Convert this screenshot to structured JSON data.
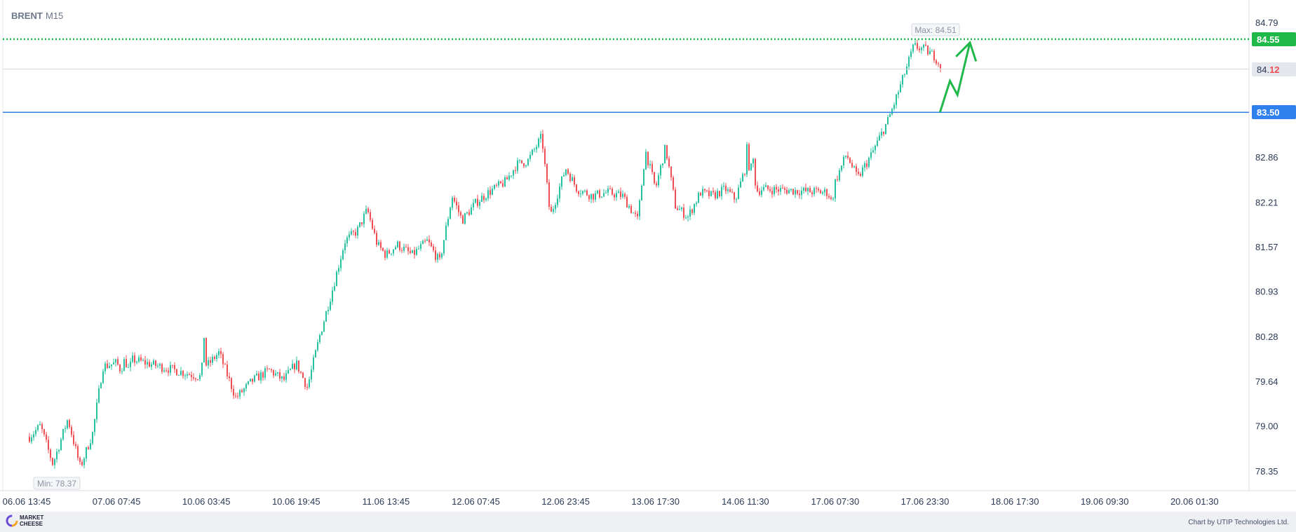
{
  "header": {
    "symbol": "BRENT",
    "timeframe": "M15"
  },
  "footer": {
    "brand_line1": "MARKET",
    "brand_line2": "CHEESE",
    "credit": "Chart by UTIP Technologies Ltd."
  },
  "colors": {
    "up": "#26c1a0",
    "down": "#ef4e55",
    "target": "#1fb84a",
    "support": "#2f80ed",
    "current_bg": "#e3e6ed",
    "current_text": "#2b3a55",
    "current_red": "#ef4e55"
  },
  "chart_data": {
    "type": "candlestick",
    "title": "BRENT",
    "timeframe": "M15",
    "x_ticks": [
      "06.06 13:45",
      "07.06 07:45",
      "10.06 03:45",
      "10.06 19:45",
      "11.06 13:45",
      "12.06 07:45",
      "12.06 23:45",
      "13.06 17:30",
      "14.06 11:30",
      "17.06 07:30",
      "17.06 23:30",
      "18.06 17:30",
      "19.06 09:30",
      "20.06 01:30"
    ],
    "y_ticks": [
      84.79,
      84.14,
      83.5,
      82.86,
      82.21,
      81.57,
      80.93,
      80.28,
      79.64,
      79.0,
      78.35
    ],
    "y_tick_labels": [
      "84.79",
      "",
      "",
      "82.86",
      "82.21",
      "81.57",
      "80.93",
      "80.28",
      "79.64",
      "79.00",
      "78.35"
    ],
    "ylim": [
      78.13,
      84.93
    ],
    "max_label": "Max: 84.51",
    "min_label": "Min: 78.37",
    "levels": [
      {
        "name": "target",
        "value": 84.55,
        "label": "84.55",
        "style": "dotted"
      },
      {
        "name": "current",
        "value": 84.12,
        "label_main": "84.",
        "label_tail": "12",
        "style": "solid-thin"
      },
      {
        "name": "support",
        "value": 83.5,
        "label": "83.50",
        "style": "solid"
      }
    ],
    "path_points": [
      [
        "06.06 13:45",
        78.8
      ],
      [
        "06.06 16:30",
        79.0
      ],
      [
        "06.06 19:00",
        78.45
      ],
      [
        "06.06 22:00",
        79.1
      ],
      [
        "07.06 00:30",
        78.4
      ],
      [
        "07.06 03:00",
        78.9
      ],
      [
        "07.06 05:00",
        79.85
      ],
      [
        "07.06 07:45",
        79.9
      ],
      [
        "07.06 11:00",
        79.8
      ],
      [
        "07.06 14:00",
        79.95
      ],
      [
        "07.06 17:00",
        79.8
      ],
      [
        "07.06 20:00",
        79.95
      ],
      [
        "10.06 00:00",
        79.7
      ],
      [
        "10.06 02:00",
        80.3
      ],
      [
        "10.06 03:45",
        79.85
      ],
      [
        "10.06 06:00",
        80.05
      ],
      [
        "10.06 09:00",
        79.4
      ],
      [
        "10.06 12:00",
        79.65
      ],
      [
        "10.06 15:00",
        79.8
      ],
      [
        "10.06 17:30",
        79.65
      ],
      [
        "10.06 19:45",
        79.9
      ],
      [
        "10.06 22:00",
        79.55
      ],
      [
        "11.06 00:30",
        80.3
      ],
      [
        "11.06 03:00",
        80.95
      ],
      [
        "11.06 05:30",
        81.65
      ],
      [
        "11.06 08:00",
        81.8
      ],
      [
        "11.06 10:00",
        82.1
      ],
      [
        "11.06 12:00",
        81.6
      ],
      [
        "11.06 13:45",
        81.45
      ],
      [
        "11.06 16:00",
        81.6
      ],
      [
        "11.06 19:00",
        81.45
      ],
      [
        "11.06 22:00",
        81.65
      ],
      [
        "12.06 00:30",
        81.35
      ],
      [
        "12.06 03:00",
        82.3
      ],
      [
        "12.06 05:00",
        81.95
      ],
      [
        "12.06 07:45",
        82.2
      ],
      [
        "12.06 10:00",
        82.35
      ],
      [
        "12.06 13:00",
        82.5
      ],
      [
        "12.06 15:00",
        82.75
      ],
      [
        "12.06 17:00",
        82.8
      ],
      [
        "12.06 19:30",
        83.15
      ],
      [
        "12.06 21:00",
        82.0
      ],
      [
        "12.06 23:45",
        82.7
      ],
      [
        "13.06 02:00",
        82.4
      ],
      [
        "13.06 05:00",
        82.3
      ],
      [
        "13.06 08:00",
        82.35
      ],
      [
        "13.06 11:00",
        82.3
      ],
      [
        "13.06 14:00",
        81.95
      ],
      [
        "13.06 15:30",
        82.95
      ],
      [
        "13.06 17:30",
        82.4
      ],
      [
        "13.06 19:30",
        83.0
      ],
      [
        "13.06 21:30",
        82.15
      ],
      [
        "14.06 00:00",
        82.0
      ],
      [
        "14.06 02:30",
        82.35
      ],
      [
        "14.06 05:00",
        82.3
      ],
      [
        "14.06 07:30",
        82.4
      ],
      [
        "14.06 09:30",
        82.25
      ],
      [
        "14.06 11:30",
        82.7
      ],
      [
        "14.06 13:00",
        83.05
      ],
      [
        "14.06 15:00",
        82.55
      ],
      [
        "14.06 17:00",
        82.9
      ],
      [
        "14.06 19:00",
        82.5
      ],
      [
        "14.06 21:00",
        82.35
      ],
      [
        "14.06 23:00",
        82.4
      ],
      [
        "17.06 02:00",
        82.35
      ],
      [
        "17.06 05:00",
        82.2
      ],
      [
        "17.06 07:30",
        82.5
      ],
      [
        "17.06 09:30",
        82.9
      ],
      [
        "17.06 11:30",
        82.55
      ],
      [
        "17.06 14:00",
        82.9
      ],
      [
        "17.06 17:00",
        83.4
      ],
      [
        "17.06 19:00",
        83.85
      ],
      [
        "17.06 21:30",
        84.45
      ],
      [
        "17.06 23:30",
        84.4
      ],
      [
        "18.06 01:30",
        84.3
      ],
      [
        "18.06 03:00",
        84.12
      ]
    ],
    "forecast_arrow": {
      "from": [
        "18.06 02:30",
        83.5
      ],
      "via": [
        [
          "18.06 04:30",
          83.95
        ],
        [
          "18.06 06:00",
          83.75
        ]
      ],
      "to": [
        "18.06 08:30",
        84.5
      ]
    }
  }
}
